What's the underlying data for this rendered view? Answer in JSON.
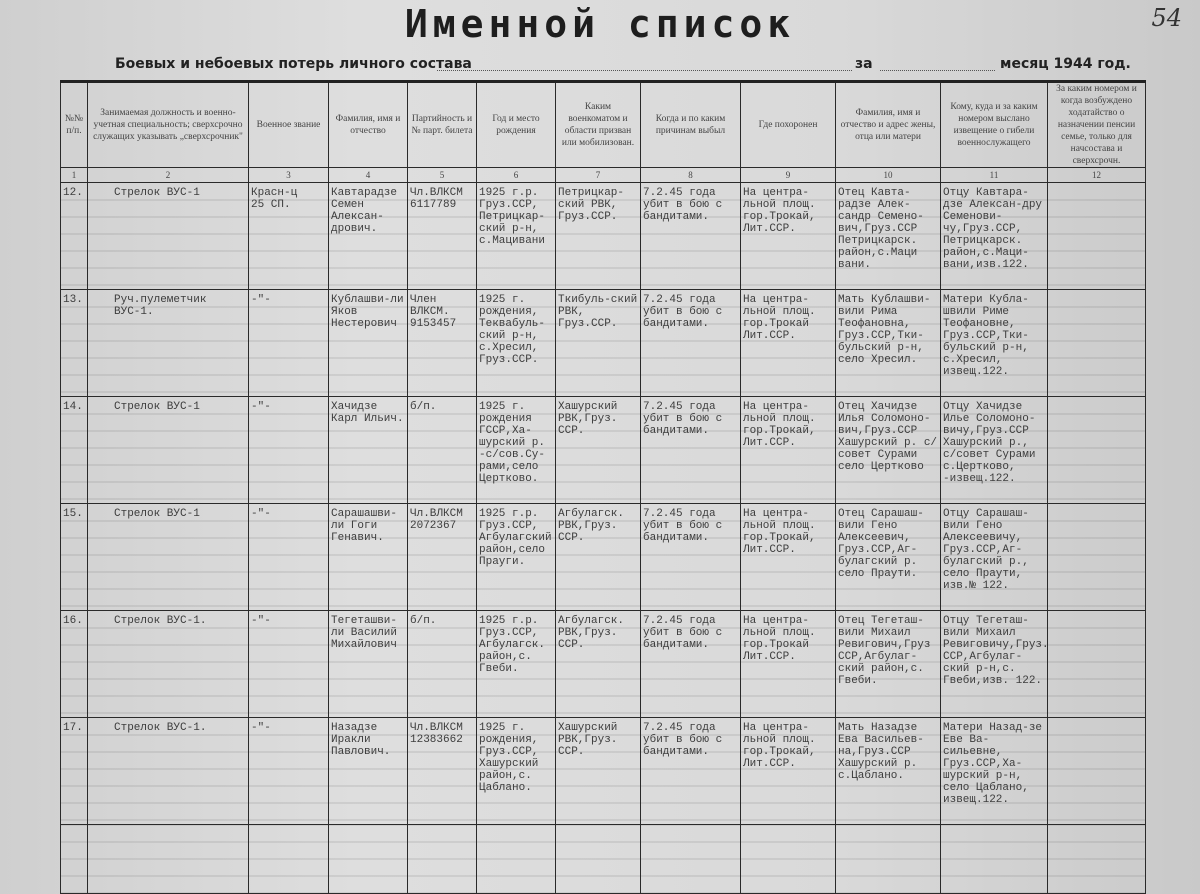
{
  "header": {
    "title": "Именной список",
    "page_number": "54",
    "subtitle_left": "Боевых и небоевых потерь личного состава",
    "subtitle_za": "за",
    "subtitle_right": "месяц 1944 год."
  },
  "columns": [
    {
      "label": "№№ п/п.",
      "num": "1"
    },
    {
      "label": "Занимаемая должность и военно-учетная специальность; сверхсрочно служащих указывать „сверхсрочник\"",
      "num": "2"
    },
    {
      "label": "Военное звание",
      "num": "3"
    },
    {
      "label": "Фамилия, имя и отчество",
      "num": "4"
    },
    {
      "label": "Партийность и № парт. билета",
      "num": "5"
    },
    {
      "label": "Год и место рождения",
      "num": "6"
    },
    {
      "label": "Каким военкоматом и области призван или мобилизован.",
      "num": "7"
    },
    {
      "label": "Когда и по каким причинам выбыл",
      "num": "8"
    },
    {
      "label": "Где похоронен",
      "num": "9"
    },
    {
      "label": "Фамилия, имя и отчество и адрес жены, отца или матери",
      "num": "10"
    },
    {
      "label": "Кому, куда и за каким номером выслано извещение о гибели военнослужащего",
      "num": "11"
    },
    {
      "label": "За каким номером и когда возбуждено ходатайство о назначении пенсии семье, только для начсостава и сверхсрочн.",
      "num": "12"
    }
  ],
  "rows": [
    {
      "cells": [
        "12.",
        "Стрелок ВУС-1",
        "Красн-ц\n25 СП.",
        "Кавтарадзе Семен Алексан-дрович.",
        "Чл.ВЛКСМ 6117789",
        "1925 г.р. Груз.ССР, Петрицкар-ский р-н, с.Мацивани",
        "Петрицкар-ский РВК, Груз.ССР.",
        "7.2.45 года убит в бою с бандитами.",
        "На центра-льной площ. гор.Трокай, Лит.ССР.",
        "Отец Кавта-радзе Алек-сандр Семено-вич,Груз.ССР Петрицкарск. район,с.Маци вани.",
        "Отцу Кавтара-дзе Алексан-дру Семенови-чу,Груз.ССР, Петрицкарск. район,с.Маци-вани,изв.122.",
        ""
      ]
    },
    {
      "cells": [
        "13.",
        "Руч.пулеметчик ВУС-1.",
        "-\"-",
        "Кублашви-ли Яков Нестерович",
        "Член ВЛКСМ. 9153457",
        "1925 г. рождения, Теквабуль-ский р-н, с.Хресил, Груз.ССР.",
        "Ткибуль-ский РВК, Груз.ССР.",
        "7.2.45 года убит в бою с бандитами.",
        "На центра-льной площ. гор.Трокай Лит.ССР.",
        "Мать Кублашви-вили Рима Теофановна, Груз.ССР,Тки-бульский р-н, село Хресил.",
        "Матери Кубла-швили Риме Теофановне, Груз.ССР,Тки-бульский р-н, с.Хресил, извещ.122.",
        ""
      ]
    },
    {
      "cells": [
        "14.",
        "Стрелок ВУС-1",
        "-\"-",
        "Хачидзе Карл Ильич.",
        "б/п.",
        "1925 г. рождения ГССР,Ха-шурский р. -с/сов.Су-рами,село Цертково.",
        "Хашурский РВК,Груз. ССР.",
        "7.2.45 года убит в бою с бандитами.",
        "На центра-льной площ. гор.Трокай, Лит.ССР.",
        "Отец Хачидзе Илья Соломоно-вич,Груз.ССР Хашурский р. с/совет Сурами село Цертково",
        "Отцу Хачидзе Илье Соломоно-вичу,Груз.ССР Хашурский р., с/совет Сурами с.Цертково, -извещ.122.",
        ""
      ]
    },
    {
      "cells": [
        "15.",
        "Стрелок ВУС-1",
        "-\"-",
        "Сарашашви-ли Гоги Генавич.",
        "Чл.ВЛКСМ 2072367",
        "1925 г.р. Груз.ССР, Агбулагский район,село Прауги.",
        "Агбулагск. РВК,Груз. ССР.",
        "7.2.45 года убит в бою с бандитами.",
        "На центра-льной площ. гор.Трокай, Лит.ССР.",
        "Отец Сарашаш-вили Гено Алексеевич, Груз.ССР,Аг-булагский р. село Праути.",
        "Отцу Сарашаш-вили Гено Алексеевичу, Груз.ССР,Аг-булагский р., село Праути, изв.№ 122.",
        ""
      ]
    },
    {
      "cells": [
        "16.",
        "Стрелок ВУС-1.",
        "-\"-",
        "Тегеташви-ли Василий Михайлович",
        "б/п.",
        "1925 г.р. Груз.ССР, Агбулагск. район,с. Гвеби.",
        "Агбулагск. РВК,Груз. ССР.",
        "7.2.45 года убит в бою с бандитами.",
        "На центра-льной площ. гор.Трокай Лит.ССР.",
        "Отец Тегеташ-вили Михаил Ревигович,Груз ССР,Агбулаг-ский район,с. Гвеби.",
        "Отцу Тегеташ-вили Михаил Ревиговичу,Груз. ССР,Агбулаг-ский р-н,с. Гвеби,изв. 122.",
        ""
      ]
    },
    {
      "cells": [
        "17.",
        "Стрелок ВУС-1.",
        "-\"-",
        "Назадзе Иракли Павлович.",
        "Чл.ВЛКСМ 12383662",
        "1925 г. рождения, Груз.ССР, Хашурский район,с. Цаблано.",
        "Хашурский РВК,Груз. ССР.",
        "7.2.45 года убит в бою с бандитами.",
        "На центра-льной площ. гор.Трокай, Лит.ССР.",
        "Мать Назадзе Ева Васильев-на,Груз.ССР Хашурский р. с.Цаблано.",
        "Матери Назад-зе Еве Ва-сильевне, Груз.ССР,Ха-шурский р-н, село Цаблано, извещ.122.",
        ""
      ]
    }
  ]
}
